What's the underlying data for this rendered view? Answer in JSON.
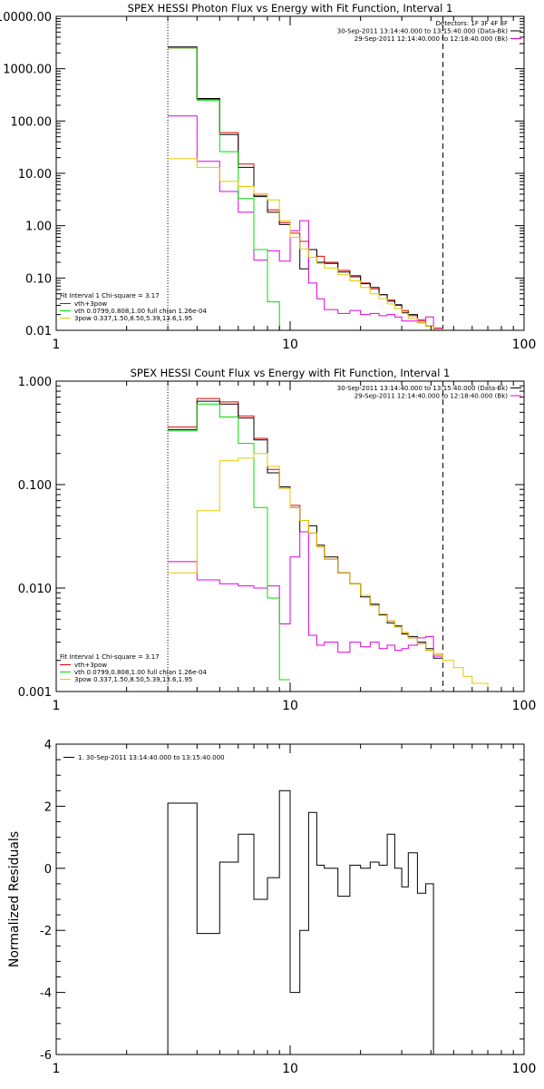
{
  "page": {
    "bg": "#ffffff"
  },
  "chart_data": [
    {
      "type": "line",
      "title": "SPEX HESSI Photon Flux vs Energy with Fit Function, Interval 1",
      "xlabel": "",
      "ylabel": "",
      "xscale": "log",
      "yscale": "log",
      "xlim": [
        1,
        100
      ],
      "ylim": [
        0.01,
        10000
      ],
      "xticks": [
        {
          "v": 1,
          "label": "1"
        },
        {
          "v": 10,
          "label": "10"
        },
        {
          "v": 100,
          "label": "100"
        }
      ],
      "yticks": [
        {
          "v": 10000,
          "label": "10000.00"
        },
        {
          "v": 1000,
          "label": "1000.00"
        },
        {
          "v": 100,
          "label": "100.00"
        },
        {
          "v": 10,
          "label": "10.00"
        },
        {
          "v": 1,
          "label": "1.00"
        },
        {
          "v": 0.1,
          "label": "0.10"
        },
        {
          "v": 0.01,
          "label": "0.01"
        }
      ],
      "vlines": [
        {
          "x": 3,
          "style": "dotted"
        },
        {
          "x": 45,
          "style": "dashed"
        }
      ],
      "header_lines": [
        "Detectors: 1F 3F 4F 8F",
        "30-Sep-2011 13:14:40.000 to 13:15:40.000 (Data-Bk)",
        "29-Sep-2011 12:14:40.000 to 12:18:40.000 (Bk)"
      ],
      "header_colors": [
        "",
        "#000000",
        "#e000e0"
      ],
      "fit_label": "Fit Interval 1   Chi-square = 3.17",
      "legend": [
        {
          "label": "vth+3pow",
          "color": "#e00000"
        },
        {
          "label": "vth 0.0799,0.808,1.00  full chian 1.26e-04",
          "color": "#00e000"
        },
        {
          "label": "3pow 0.337,1.50,8.50,5.39,13.6,1.95",
          "color": "#e6c800"
        }
      ],
      "series": [
        {
          "name": "vth+3pow",
          "color": "#e00000",
          "edges": [
            3,
            4,
            5,
            6,
            7,
            8,
            9,
            10,
            11,
            12,
            13,
            14,
            16,
            18,
            20,
            22,
            24,
            26,
            28,
            30,
            32,
            35,
            38,
            41,
            45
          ],
          "values": [
            2500,
            260,
            60,
            15,
            3.8,
            2.0,
            1.15,
            0.72,
            0.5,
            0.35,
            0.26,
            0.2,
            0.14,
            0.105,
            0.08,
            0.062,
            0.048,
            0.038,
            0.03,
            0.024,
            0.019,
            0.015,
            0.012,
            0.01
          ]
        },
        {
          "name": "Data-Bk",
          "color": "#000000",
          "edges": [
            3,
            4,
            5,
            6,
            7,
            8,
            9,
            10,
            11,
            12,
            13,
            14,
            16,
            18,
            20,
            22,
            24,
            26,
            28,
            30,
            32,
            35,
            38,
            41,
            45
          ],
          "values": [
            2600,
            270,
            55,
            13,
            3.6,
            1.8,
            1.05,
            0.6,
            0.15,
            0.35,
            0.2,
            0.19,
            0.13,
            0.11,
            0.078,
            0.066,
            0.048,
            0.036,
            0.031,
            0.022,
            0.02,
            0.014,
            0.012,
            0.011
          ]
        },
        {
          "name": "Bk",
          "color": "#e000e0",
          "edges": [
            3,
            4,
            5,
            6,
            7,
            8,
            9,
            10,
            11,
            12,
            13,
            14,
            16,
            18,
            20,
            22,
            24,
            26,
            28,
            30,
            32,
            35,
            38,
            41,
            45
          ],
          "values": [
            125,
            17,
            4.5,
            1.8,
            0.22,
            0.33,
            0.21,
            0.8,
            1.25,
            0.08,
            0.04,
            0.025,
            0.021,
            0.024,
            0.02,
            0.021,
            0.019,
            0.02,
            0.018,
            0.015,
            0.015,
            0.016,
            0.018,
            0.011
          ]
        },
        {
          "name": "vth",
          "color": "#00e000",
          "edges": [
            3,
            4,
            5,
            6,
            7,
            8,
            9,
            10
          ],
          "values": [
            2500,
            250,
            26,
            3.3,
            0.35,
            0.035,
            0.008
          ]
        },
        {
          "name": "3pow",
          "color": "#e6c800",
          "edges": [
            3,
            4,
            5,
            6,
            7,
            8,
            9,
            10,
            11,
            12,
            13,
            14,
            16,
            18,
            20,
            22,
            24,
            26,
            28,
            30,
            32,
            35,
            38,
            41,
            45,
            50
          ],
          "values": [
            19,
            13,
            7,
            5.6,
            4.1,
            3.1,
            1.25,
            0.6,
            0.36,
            0.25,
            0.19,
            0.155,
            0.115,
            0.088,
            0.066,
            0.05,
            0.04,
            0.032,
            0.026,
            0.021,
            0.017,
            0.014,
            0.012,
            0.0105,
            0.009
          ]
        }
      ]
    },
    {
      "type": "line",
      "title": "SPEX HESSI Count Flux vs Energy with Fit Function, Interval 1",
      "xlabel": "",
      "ylabel": "",
      "xscale": "log",
      "yscale": "log",
      "xlim": [
        1,
        100
      ],
      "ylim": [
        0.001,
        1
      ],
      "xticks": [
        {
          "v": 1,
          "label": "1"
        },
        {
          "v": 10,
          "label": "10"
        },
        {
          "v": 100,
          "label": "100"
        }
      ],
      "yticks": [
        {
          "v": 1,
          "label": "1.000"
        },
        {
          "v": 0.1,
          "label": "0.100"
        },
        {
          "v": 0.01,
          "label": "0.010"
        },
        {
          "v": 0.001,
          "label": "0.001"
        }
      ],
      "vlines": [
        {
          "x": 3,
          "style": "dotted"
        },
        {
          "x": 45,
          "style": "dashed"
        }
      ],
      "header_lines": [
        "30-Sep-2011 13:14:40.000 to 13:15:40.000 (Data-Bk)",
        "29-Sep-2011 12:14:40.000 to 12:18:40.000 (Bk)"
      ],
      "header_colors": [
        "#000000",
        "#e000e0"
      ],
      "fit_label": "Fit Interval 1   Chi-square = 3.17",
      "legend": [
        {
          "label": "vth+3pow",
          "color": "#e00000"
        },
        {
          "label": "vth 0.0799,0.808,1.00  full chian 1.26e-04",
          "color": "#00e000"
        },
        {
          "label": "3pow 0.337,1.50,8.50,5.39,13.6,1.95",
          "color": "#e6c800"
        }
      ],
      "series": [
        {
          "name": "vth+3pow",
          "color": "#e00000",
          "edges": [
            3,
            4,
            5,
            6,
            7,
            8,
            9,
            10,
            11,
            12,
            13,
            14,
            16,
            18,
            20,
            22,
            24,
            26,
            28,
            30,
            32,
            35,
            38,
            41,
            45
          ],
          "values": [
            0.36,
            0.68,
            0.63,
            0.46,
            0.28,
            0.14,
            0.092,
            0.063,
            0.045,
            0.034,
            0.025,
            0.019,
            0.014,
            0.011,
            0.0085,
            0.0068,
            0.0056,
            0.0048,
            0.0042,
            0.0037,
            0.0033,
            0.0029,
            0.0025,
            0.0023
          ]
        },
        {
          "name": "Data-Bk",
          "color": "#000000",
          "edges": [
            3,
            4,
            5,
            6,
            7,
            8,
            9,
            10,
            11,
            12,
            13,
            14,
            16,
            18,
            20,
            22,
            24,
            26,
            28,
            30,
            32,
            35,
            38,
            41,
            45
          ],
          "values": [
            0.34,
            0.64,
            0.6,
            0.44,
            0.27,
            0.13,
            0.095,
            0.06,
            0.035,
            0.04,
            0.026,
            0.02,
            0.014,
            0.011,
            0.0082,
            0.007,
            0.0055,
            0.0046,
            0.0043,
            0.0036,
            0.0034,
            0.003,
            0.0026,
            0.0021
          ]
        },
        {
          "name": "Bk",
          "color": "#e000e0",
          "edges": [
            3,
            4,
            5,
            6,
            7,
            8,
            9,
            10,
            11,
            12,
            13,
            14,
            16,
            18,
            20,
            22,
            24,
            26,
            28,
            30,
            32,
            35,
            38,
            41,
            45
          ],
          "values": [
            0.018,
            0.012,
            0.011,
            0.0105,
            0.01,
            0.0105,
            0.0045,
            0.02,
            0.035,
            0.0035,
            0.0028,
            0.003,
            0.0024,
            0.003,
            0.0027,
            0.003,
            0.0026,
            0.0028,
            0.0025,
            0.0026,
            0.0028,
            0.0033,
            0.0034,
            0.0022
          ]
        },
        {
          "name": "vth",
          "color": "#00e000",
          "edges": [
            3,
            4,
            5,
            6,
            7,
            8,
            9,
            10
          ],
          "values": [
            0.33,
            0.6,
            0.45,
            0.25,
            0.06,
            0.008,
            0.0013
          ]
        },
        {
          "name": "3pow",
          "color": "#e6c800",
          "edges": [
            3,
            4,
            5,
            6,
            7,
            8,
            9,
            10,
            11,
            12,
            13,
            14,
            16,
            18,
            20,
            22,
            24,
            26,
            28,
            30,
            32,
            35,
            38,
            41,
            45,
            50,
            55,
            60,
            70,
            80
          ],
          "values": [
            0.014,
            0.056,
            0.17,
            0.18,
            0.2,
            0.15,
            0.092,
            0.06,
            0.045,
            0.034,
            0.025,
            0.019,
            0.014,
            0.011,
            0.0085,
            0.0068,
            0.0056,
            0.0048,
            0.0042,
            0.0037,
            0.0033,
            0.0029,
            0.0025,
            0.0023,
            0.002,
            0.0017,
            0.0014,
            0.0012,
            0.001
          ]
        }
      ]
    },
    {
      "type": "line",
      "title": "",
      "xlabel": "",
      "ylabel": "Normalized Residuals",
      "xscale": "log",
      "yscale": "linear",
      "xlim": [
        1,
        100
      ],
      "ylim": [
        -6,
        4
      ],
      "xticks": [
        {
          "v": 1,
          "label": "1"
        },
        {
          "v": 10,
          "label": "10"
        },
        {
          "v": 100,
          "label": "100"
        }
      ],
      "yticks": [
        {
          "v": 4,
          "label": "4"
        },
        {
          "v": 2,
          "label": "2"
        },
        {
          "v": 0,
          "label": "0"
        },
        {
          "v": -2,
          "label": "-2"
        },
        {
          "v": -4,
          "label": "-4"
        },
        {
          "v": -6,
          "label": "-6"
        }
      ],
      "legend": [
        {
          "label": "1. 30-Sep-2011 13:14:40.000 to 13:15:40.000",
          "color": "#000000"
        }
      ],
      "series": [
        {
          "name": "1. 30-Sep-2011 13:14:40.000 to 13:15:40.000",
          "color": "#000000",
          "edges": [
            3,
            4,
            5,
            6,
            7,
            8,
            9,
            10,
            11,
            12,
            13,
            14,
            16,
            18,
            20,
            22,
            24,
            26,
            28,
            30,
            32,
            35,
            38,
            41,
            45
          ],
          "values": [
            2.1,
            -2.1,
            0.2,
            1.1,
            -1.0,
            -0.3,
            2.5,
            -4.0,
            -2.0,
            1.8,
            0.1,
            0.0,
            -0.9,
            0.1,
            0.0,
            0.2,
            0.1,
            1.1,
            0.0,
            -0.6,
            0.5,
            -0.8,
            -0.5,
            -6.0
          ],
          "drop_to_bottom": true
        }
      ]
    }
  ]
}
